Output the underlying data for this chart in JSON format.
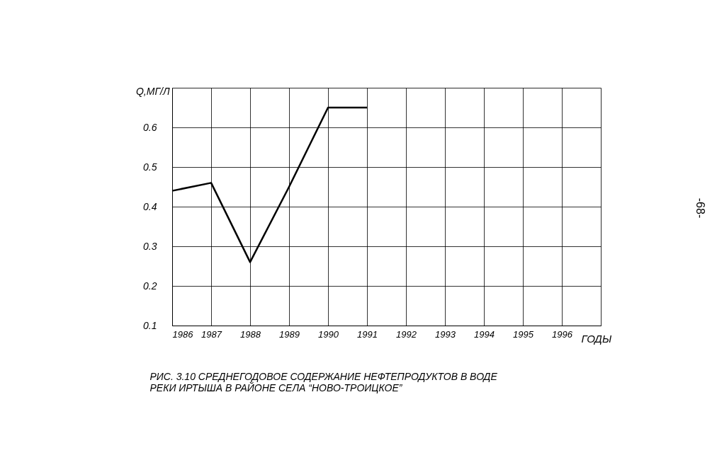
{
  "chart_data": {
    "type": "line",
    "title": "РИС. 3.10 СРЕДНЕГОДОВОЕ СОДЕРЖАНИЕ НЕФТЕПРОДУКТОВ В ВОДЕ\nРЕКИ ИРТЫША В РАЙОНЕ СЕЛА “НОВО-ТРОИЦКОЕ”",
    "xlabel": "ГОДЫ",
    "ylabel": "Q,МГ/Л",
    "x": [
      1986,
      1987,
      1988,
      1989,
      1990,
      1991
    ],
    "series": [
      {
        "color": "#000000",
        "values": [
          0.44,
          0.46,
          0.26,
          0.45,
          0.65,
          0.65
        ]
      }
    ],
    "xlim": [
      1986,
      1997
    ],
    "xticks": [
      1986,
      1987,
      1988,
      1989,
      1990,
      1991,
      1992,
      1993,
      1994,
      1995,
      1996,
      {
        "value": 1997,
        "label": null
      }
    ],
    "ylim": [
      0.1,
      0.7
    ],
    "yticks": [
      0.1,
      0.2,
      0.3,
      0.4,
      0.5,
      0.6,
      {
        "value": 0.7,
        "label": null
      }
    ],
    "grid": true,
    "marker": "none",
    "line_style": "solid",
    "annotations": [
      "-68-"
    ]
  }
}
